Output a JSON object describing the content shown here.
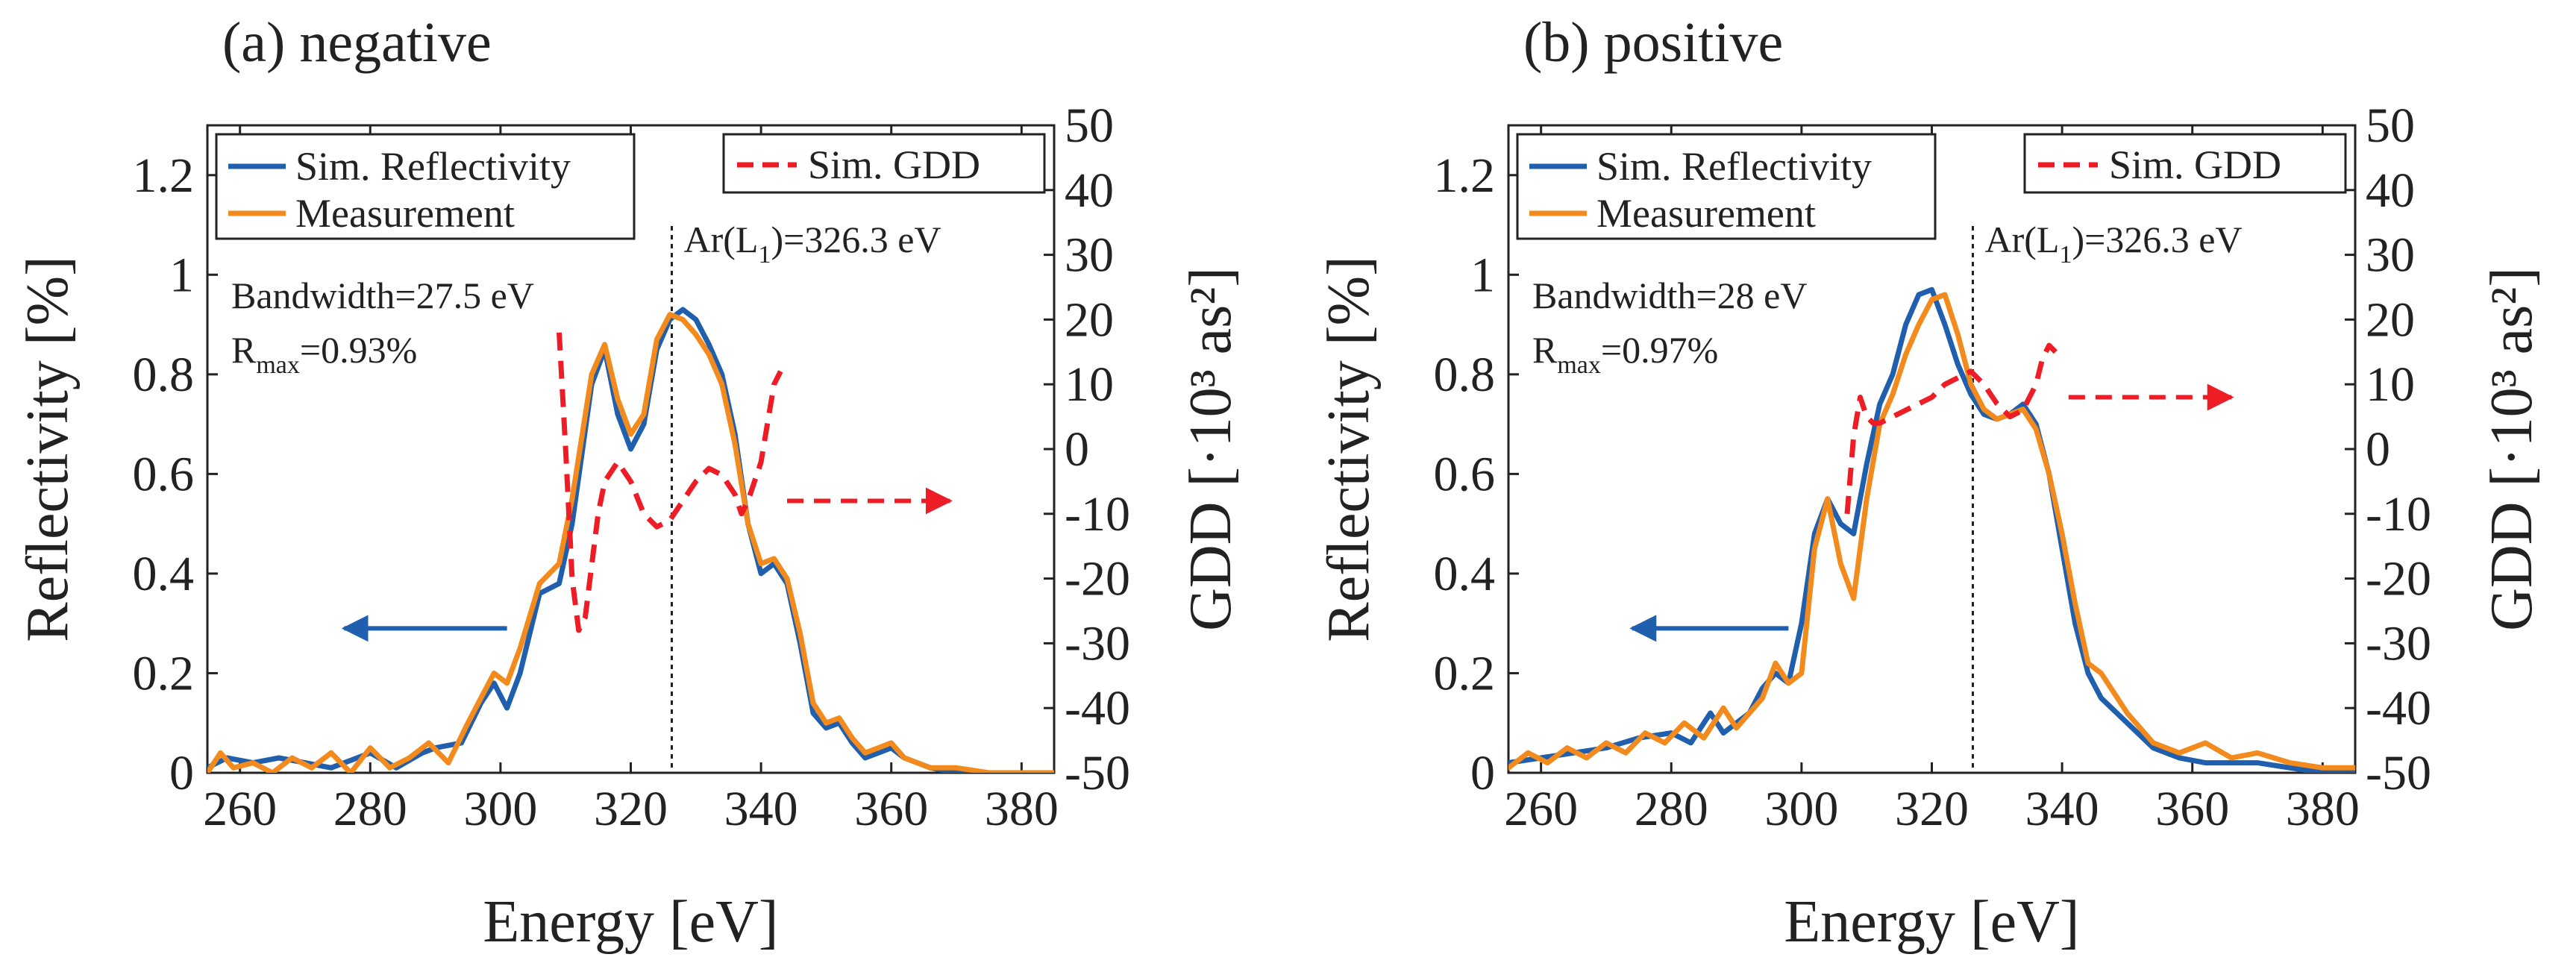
{
  "chart_data": [
    {
      "type": "line",
      "panel_title": "(a) negative",
      "xlabel": "Energy [eV]",
      "ylabel": "Reflectivity [%]",
      "y2label": "GDD [·10³ as²]",
      "xlim": [
        255,
        385
      ],
      "ylim": [
        0,
        1.3
      ],
      "y2lim": [
        -50,
        50
      ],
      "xticks": [
        "260",
        "280",
        "300",
        "320",
        "340",
        "360",
        "380"
      ],
      "yticks": [
        "0",
        "0.2",
        "0.4",
        "0.6",
        "0.8",
        "1",
        "1.2"
      ],
      "y2ticks": [
        "-50",
        "-40",
        "-30",
        "-20",
        "-10",
        "0",
        "10",
        "20",
        "30",
        "40",
        "50"
      ],
      "legend": [
        "Sim. Reflectivity",
        "Measurement",
        "Sim. GDD"
      ],
      "annotations": {
        "bandwidth": "Bandwidth=27.5 eV",
        "rmax_label": "R",
        "rmax_sub": "max",
        "rmax_value": "=0.93%",
        "edge_pre": "Ar(L",
        "edge_sub": "1",
        "edge_post": ")=326.3 eV",
        "edge_energy": 326.3
      },
      "arrows": {
        "left_arrow": {
          "from_x": 301,
          "to_x": 276,
          "y": 0.29
        },
        "right_arrow": {
          "from_x": 344,
          "to_x": 369,
          "y2": -8
        }
      },
      "series": [
        {
          "name": "Sim. Reflectivity",
          "color": "#1f5fad",
          "axis": "left",
          "x": [
            255,
            258,
            262,
            266,
            270,
            274,
            278,
            280,
            284,
            288,
            290,
            294,
            297,
            299,
            301,
            303,
            306,
            309,
            311,
            314,
            316,
            318,
            320,
            322,
            324,
            326,
            328,
            330,
            332,
            334,
            336,
            338,
            340,
            342,
            344,
            346,
            348,
            350,
            352,
            354,
            356,
            358,
            360,
            362,
            364,
            366,
            370,
            375,
            380,
            385
          ],
          "y": [
            0.01,
            0.03,
            0.02,
            0.03,
            0.02,
            0.01,
            0.03,
            0.04,
            0.01,
            0.04,
            0.05,
            0.06,
            0.14,
            0.18,
            0.13,
            0.2,
            0.36,
            0.38,
            0.5,
            0.78,
            0.85,
            0.72,
            0.65,
            0.7,
            0.85,
            0.91,
            0.93,
            0.91,
            0.86,
            0.8,
            0.68,
            0.5,
            0.4,
            0.42,
            0.38,
            0.26,
            0.12,
            0.09,
            0.1,
            0.06,
            0.03,
            0.04,
            0.05,
            0.03,
            0.02,
            0.01,
            0.0,
            0.0,
            0.0,
            0.0
          ]
        },
        {
          "name": "Measurement",
          "color": "#f28a1d",
          "axis": "left",
          "x": [
            255,
            257,
            259,
            262,
            265,
            268,
            271,
            274,
            277,
            280,
            283,
            286,
            289,
            292,
            295,
            297,
            299,
            301,
            303,
            306,
            309,
            311,
            314,
            316,
            318,
            320,
            322,
            324,
            326,
            328,
            330,
            332,
            334,
            336,
            338,
            340,
            342,
            344,
            346,
            348,
            350,
            352,
            354,
            356,
            358,
            360,
            362,
            364,
            366,
            370,
            375,
            380,
            385
          ],
          "y": [
            0.0,
            0.04,
            0.01,
            0.02,
            0.0,
            0.03,
            0.01,
            0.04,
            0.0,
            0.05,
            0.01,
            0.03,
            0.06,
            0.02,
            0.1,
            0.15,
            0.2,
            0.18,
            0.25,
            0.38,
            0.42,
            0.55,
            0.8,
            0.86,
            0.75,
            0.68,
            0.72,
            0.87,
            0.92,
            0.91,
            0.88,
            0.84,
            0.78,
            0.66,
            0.5,
            0.42,
            0.43,
            0.39,
            0.28,
            0.14,
            0.1,
            0.11,
            0.07,
            0.04,
            0.05,
            0.06,
            0.03,
            0.02,
            0.01,
            0.01,
            0.0,
            0.0,
            0.0
          ]
        },
        {
          "name": "Sim. GDD",
          "color": "#ee1c24",
          "axis": "right",
          "dashed": true,
          "x": [
            309,
            310,
            311,
            312,
            313,
            314,
            315,
            316,
            318,
            320,
            322,
            324,
            326,
            328,
            330,
            332,
            334,
            336,
            337,
            338,
            340,
            341,
            342,
            343
          ],
          "y": [
            18,
            0,
            -20,
            -28,
            -26,
            -18,
            -10,
            -5,
            -2,
            -5,
            -10,
            -12,
            -11,
            -8,
            -5,
            -3,
            -4,
            -7,
            -10,
            -8,
            -2,
            4,
            10,
            12
          ]
        }
      ]
    },
    {
      "type": "line",
      "panel_title": "(b) positive",
      "xlabel": "Energy [eV]",
      "ylabel": "Reflectivity [%]",
      "y2label": "GDD [·10³ as²]",
      "xlim": [
        255,
        385
      ],
      "ylim": [
        0,
        1.3
      ],
      "y2lim": [
        -50,
        50
      ],
      "xticks": [
        "260",
        "280",
        "300",
        "320",
        "340",
        "360",
        "380"
      ],
      "yticks": [
        "0",
        "0.2",
        "0.4",
        "0.6",
        "0.8",
        "1",
        "1.2"
      ],
      "y2ticks": [
        "-50",
        "-40",
        "-30",
        "-20",
        "-10",
        "0",
        "10",
        "20",
        "30",
        "40",
        "50"
      ],
      "legend": [
        "Sim. Reflectivity",
        "Measurement",
        "Sim. GDD"
      ],
      "annotations": {
        "bandwidth": "Bandwidth=28 eV",
        "rmax_label": "R",
        "rmax_sub": "max",
        "rmax_value": "=0.97%",
        "edge_pre": "Ar(L",
        "edge_sub": "1",
        "edge_post": ")=326.3 eV",
        "edge_energy": 326.3
      },
      "arrows": {
        "left_arrow": {
          "from_x": 298,
          "to_x": 274,
          "y": 0.29
        },
        "right_arrow": {
          "from_x": 341,
          "to_x": 366,
          "y2": 8
        }
      },
      "series": [
        {
          "name": "Sim. Reflectivity",
          "color": "#1f5fad",
          "axis": "left",
          "x": [
            255,
            260,
            265,
            270,
            275,
            280,
            283,
            286,
            288,
            290,
            292,
            294,
            296,
            298,
            300,
            302,
            304,
            306,
            308,
            310,
            312,
            314,
            316,
            318,
            320,
            322,
            324,
            326,
            328,
            330,
            332,
            334,
            336,
            338,
            340,
            342,
            344,
            346,
            350,
            354,
            358,
            362,
            366,
            370,
            375,
            380,
            385
          ],
          "y": [
            0.02,
            0.03,
            0.04,
            0.05,
            0.07,
            0.08,
            0.06,
            0.12,
            0.08,
            0.1,
            0.12,
            0.17,
            0.2,
            0.18,
            0.3,
            0.48,
            0.55,
            0.5,
            0.48,
            0.62,
            0.74,
            0.8,
            0.9,
            0.96,
            0.97,
            0.9,
            0.82,
            0.76,
            0.72,
            0.71,
            0.72,
            0.74,
            0.7,
            0.6,
            0.45,
            0.3,
            0.2,
            0.15,
            0.1,
            0.05,
            0.03,
            0.02,
            0.02,
            0.02,
            0.01,
            0.0,
            0.0
          ]
        },
        {
          "name": "Measurement",
          "color": "#f28a1d",
          "axis": "left",
          "x": [
            255,
            258,
            261,
            264,
            267,
            270,
            273,
            276,
            279,
            282,
            285,
            288,
            290,
            292,
            294,
            296,
            298,
            300,
            302,
            304,
            306,
            308,
            310,
            312,
            314,
            316,
            318,
            320,
            322,
            324,
            326,
            328,
            330,
            332,
            334,
            336,
            338,
            340,
            342,
            344,
            346,
            348,
            350,
            354,
            358,
            362,
            366,
            370,
            375,
            380,
            385
          ],
          "y": [
            0.01,
            0.04,
            0.02,
            0.05,
            0.03,
            0.06,
            0.04,
            0.08,
            0.06,
            0.1,
            0.07,
            0.13,
            0.09,
            0.12,
            0.15,
            0.22,
            0.18,
            0.2,
            0.45,
            0.55,
            0.42,
            0.35,
            0.55,
            0.7,
            0.76,
            0.84,
            0.9,
            0.95,
            0.96,
            0.88,
            0.78,
            0.73,
            0.71,
            0.72,
            0.73,
            0.69,
            0.6,
            0.48,
            0.34,
            0.22,
            0.2,
            0.16,
            0.12,
            0.06,
            0.04,
            0.06,
            0.03,
            0.04,
            0.02,
            0.01,
            0.01
          ]
        },
        {
          "name": "Sim. GDD",
          "color": "#ee1c24",
          "axis": "right",
          "dashed": true,
          "x": [
            307,
            308,
            309,
            310,
            311,
            312,
            314,
            316,
            318,
            320,
            322,
            324,
            326,
            328,
            330,
            332,
            334,
            336,
            337,
            338,
            339
          ],
          "y": [
            -10,
            2,
            8,
            5,
            4,
            4,
            5,
            6,
            7,
            8,
            10,
            11,
            12,
            10,
            7,
            5,
            6,
            10,
            14,
            16,
            15
          ]
        }
      ]
    }
  ]
}
